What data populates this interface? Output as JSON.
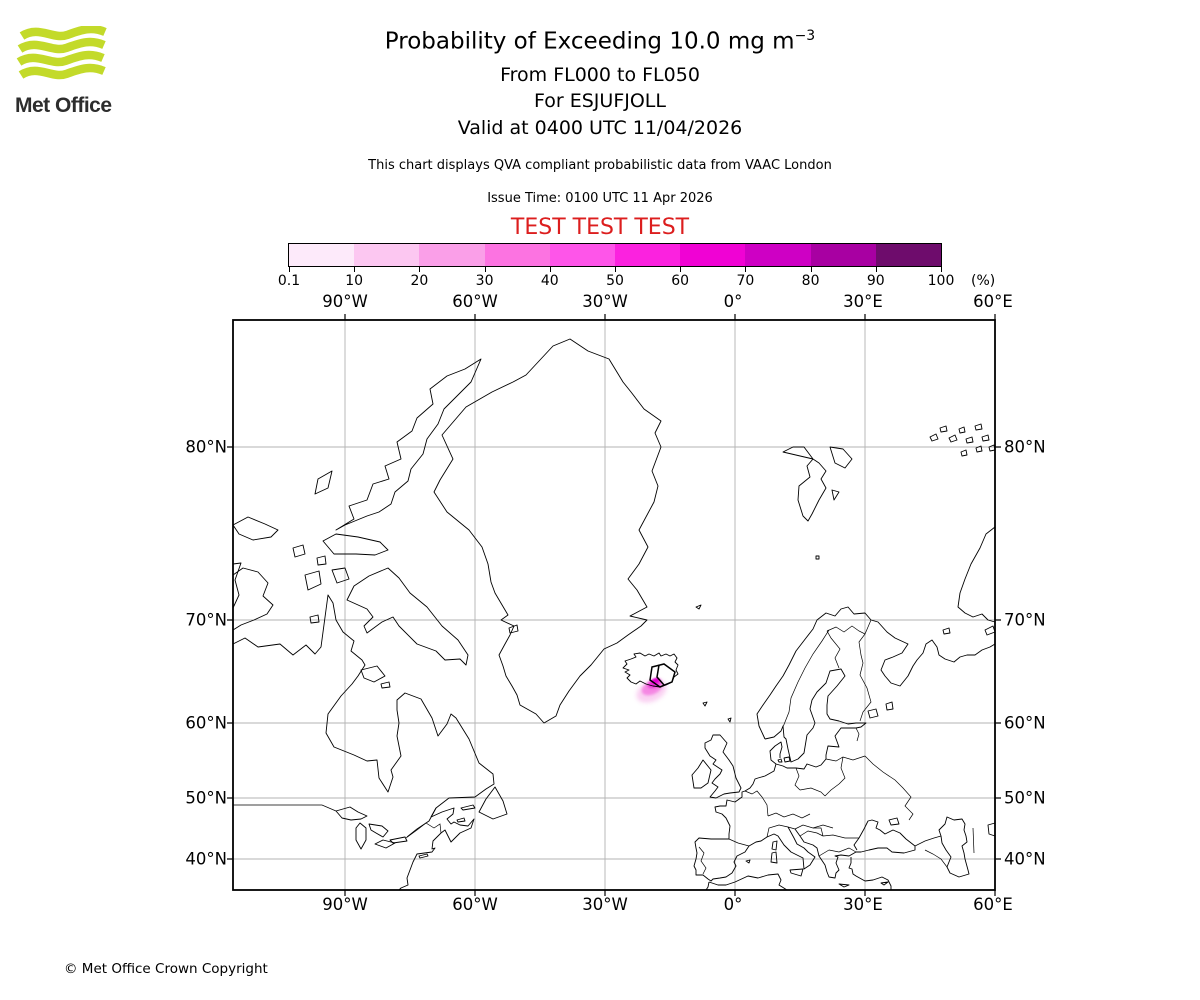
{
  "logo": {
    "text": "Met Office"
  },
  "header": {
    "title": "Probability of Exceeding 10.0 mg m",
    "title_sup": "−3",
    "flight_levels": "From FL000 to FL050",
    "volcano": "For ESJUFJOLL",
    "valid": "Valid at 0400 UTC 11/04/2026",
    "note": "This chart displays QVA compliant probabilistic data from VAAC London",
    "issue_time": "Issue Time: 0100 UTC 11 Apr 2026",
    "test_banner": "TEST TEST TEST",
    "test_color": "#dc1e1e"
  },
  "colorbar": {
    "labels": [
      "0.1",
      "10",
      "20",
      "30",
      "40",
      "50",
      "60",
      "70",
      "80",
      "90",
      "100"
    ],
    "unit": "(%)",
    "colors": [
      "#fdeafa",
      "#fcc7f1",
      "#fa9fe8",
      "#fc73e1",
      "#fe55e9",
      "#fb22df",
      "#f002d4",
      "#ce00c4",
      "#a800a2",
      "#6e0c6c"
    ]
  },
  "map": {
    "lon_labels": [
      "90°W",
      "60°W",
      "30°W",
      "0°",
      "30°E",
      "60°E"
    ],
    "lat_labels": [
      "80°N",
      "70°N",
      "60°N",
      "50°N",
      "40°N"
    ],
    "grid_color": "#b3b3b3",
    "coast_color": "#000000",
    "plume": {
      "volcano": "ESJUFJOLL",
      "core_color": "#e205cf",
      "inner_color": "#ee2ad8",
      "mid_color": "#f584e3",
      "outer_color": "#f9c9f0"
    }
  },
  "footer": {
    "copyright": "© Met Office Crown Copyright"
  },
  "accent_colors": {
    "logo_green": "#c3da2a"
  }
}
